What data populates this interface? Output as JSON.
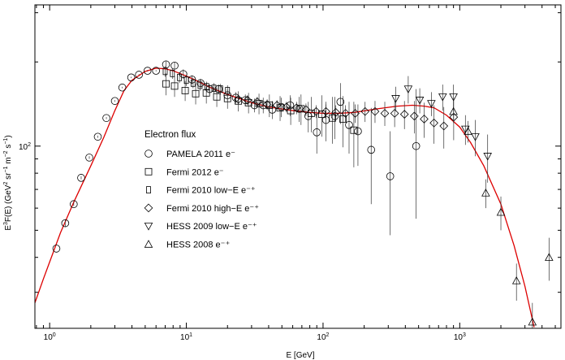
{
  "chart_data": {
    "type": "scatter",
    "title": "",
    "xlabel": "E [GeV]",
    "ylabel": "E^3F(E) (GeV^2 sr^-1 m^-2 s^-1)",
    "xscale": "log",
    "yscale": "log",
    "xlim": [
      0.78,
      5500
    ],
    "ylim": [
      22.3,
      320
    ],
    "x_tick_labels": [
      {
        "value": 1,
        "base": "10",
        "exp": "0"
      },
      {
        "value": 10,
        "base": "10",
        "exp": "1"
      },
      {
        "value": 100,
        "base": "10",
        "exp": "2"
      },
      {
        "value": 1000,
        "base": "10",
        "exp": "3"
      }
    ],
    "y_tick_labels": [
      {
        "value": 100,
        "base": "10",
        "exp": "2"
      }
    ],
    "grid": false,
    "legend": {
      "title": "Electron flux",
      "position": "center-left"
    },
    "curve_color": "#dd0000",
    "series": [
      {
        "name": "PAMELA 2011 e⁻",
        "marker": "circle",
        "points": [
          [
            1.12,
            43,
            0,
            0
          ],
          [
            1.3,
            53,
            1.5,
            1.5
          ],
          [
            1.5,
            62,
            1,
            1
          ],
          [
            1.7,
            77,
            1,
            1
          ],
          [
            1.95,
            91,
            1,
            1
          ],
          [
            2.25,
            108,
            1,
            1
          ],
          [
            2.6,
            126,
            1,
            1
          ],
          [
            3.0,
            145,
            1,
            1
          ],
          [
            3.4,
            162,
            1,
            1
          ],
          [
            3.95,
            176,
            1,
            1
          ],
          [
            4.5,
            180,
            1,
            1
          ],
          [
            5.2,
            186,
            1,
            1
          ],
          [
            6.0,
            186,
            1,
            1
          ],
          [
            7.1,
            196,
            6,
            6
          ],
          [
            8.2,
            194,
            6,
            6
          ],
          [
            9.5,
            181,
            7,
            7
          ],
          [
            11.0,
            173,
            6,
            6
          ],
          [
            12.7,
            168,
            6,
            6
          ],
          [
            14.8,
            160,
            6,
            6
          ],
          [
            17.2,
            160,
            6,
            6
          ],
          [
            20,
            152,
            7,
            7
          ],
          [
            23,
            149,
            7,
            7
          ],
          [
            27,
            146,
            7,
            7
          ],
          [
            31.5,
            140,
            8,
            8
          ],
          [
            36.5,
            140,
            9,
            9
          ],
          [
            42.5,
            135,
            10,
            10
          ],
          [
            49.5,
            138,
            11,
            11
          ],
          [
            57.5,
            140,
            12,
            12
          ],
          [
            67,
            136,
            14,
            14
          ],
          [
            78,
            128,
            16,
            16
          ],
          [
            90,
            112,
            18,
            18
          ],
          [
            105,
            124,
            20,
            20
          ],
          [
            122,
            128,
            22,
            22
          ],
          [
            134,
            144,
            24,
            24
          ],
          [
            155,
            119,
            25,
            25
          ],
          [
            180,
            113,
            28,
            28
          ],
          [
            225,
            97,
            35,
            40
          ],
          [
            310,
            78,
            30,
            35
          ],
          [
            480,
            100,
            45,
            60
          ]
        ]
      },
      {
        "name": "Fermi 2012 e⁻",
        "marker": "square",
        "points": [
          [
            7.1,
            167,
            15,
            15
          ],
          [
            8.2,
            164,
            14,
            14
          ],
          [
            9.8,
            158,
            13,
            13
          ],
          [
            11.7,
            154,
            13,
            13
          ],
          [
            14.0,
            155,
            13,
            13
          ],
          [
            16.7,
            150,
            12,
            12
          ],
          [
            20,
            148,
            12,
            12
          ],
          [
            24,
            145,
            12,
            12
          ],
          [
            28.5,
            143,
            12,
            12
          ],
          [
            34,
            142,
            12,
            12
          ],
          [
            40.5,
            140,
            13,
            13
          ],
          [
            48.5,
            137,
            14,
            14
          ],
          [
            58,
            134,
            15,
            15
          ],
          [
            69,
            136,
            17,
            17
          ],
          [
            82,
            131,
            19,
            19
          ],
          [
            98,
            130,
            22,
            22
          ],
          [
            117,
            126,
            24,
            24
          ],
          [
            140,
            125,
            26,
            26
          ],
          [
            168,
            114,
            30,
            30
          ]
        ]
      },
      {
        "name": "Fermi 2010 low−E e⁻⁺",
        "marker": "rect",
        "points": [
          [
            7.0,
            185,
            8,
            8
          ],
          [
            7.9,
            182,
            8,
            8
          ],
          [
            8.9,
            176,
            8,
            8
          ],
          [
            10.0,
            172,
            8,
            8
          ],
          [
            11.2,
            168,
            7,
            7
          ],
          [
            12.6,
            165,
            7,
            7
          ],
          [
            14.1,
            163,
            7,
            7
          ],
          [
            15.9,
            161,
            7,
            7
          ],
          [
            17.8,
            160,
            7,
            7
          ],
          [
            20,
            158,
            7,
            7
          ]
        ]
      },
      {
        "name": "Fermi 2010 high−E e⁻⁺",
        "marker": "diamond",
        "points": [
          [
            24,
            147,
            6,
            6
          ],
          [
            28,
            146,
            6,
            6
          ],
          [
            33,
            144,
            6,
            6
          ],
          [
            39,
            141,
            6,
            6
          ],
          [
            46,
            140,
            6,
            6
          ],
          [
            54,
            138,
            6,
            6
          ],
          [
            64,
            137,
            7,
            7
          ],
          [
            75,
            135,
            7,
            7
          ],
          [
            89,
            133,
            7,
            7
          ],
          [
            105,
            133,
            8,
            8
          ],
          [
            124,
            132,
            8,
            8
          ],
          [
            146,
            131,
            9,
            9
          ],
          [
            172,
            131,
            10,
            10
          ],
          [
            203,
            133,
            11,
            11
          ],
          [
            240,
            133,
            12,
            12
          ],
          [
            283,
            131,
            13,
            13
          ],
          [
            334,
            131,
            14,
            14
          ],
          [
            394,
            130,
            15,
            15
          ],
          [
            465,
            128,
            17,
            17
          ],
          [
            549,
            125,
            18,
            18
          ],
          [
            648,
            121,
            19,
            19
          ],
          [
            765,
            118,
            20,
            20
          ],
          [
            903,
            127,
            22,
            22
          ]
        ]
      },
      {
        "name": "HESS 2009 low−E e⁻⁺",
        "marker": "triangle-down",
        "points": [
          [
            340,
            148,
            15,
            15
          ],
          [
            420,
            160,
            18,
            18
          ],
          [
            510,
            146,
            15,
            15
          ],
          [
            620,
            142,
            14,
            14
          ],
          [
            750,
            150,
            16,
            16
          ],
          [
            900,
            150,
            16,
            16
          ],
          [
            1100,
            115,
            14,
            14
          ],
          [
            1300,
            108,
            16,
            16
          ],
          [
            1600,
            92,
            18,
            18
          ]
        ]
      },
      {
        "name": "HESS 2008 e⁻⁺",
        "marker": "triangle-up",
        "points": [
          [
            900,
            133,
            12,
            12
          ],
          [
            1150,
            113,
            10,
            10
          ],
          [
            1550,
            68,
            8,
            8
          ],
          [
            2000,
            58,
            8,
            8
          ],
          [
            2600,
            33,
            5,
            5
          ],
          [
            3400,
            23.5,
            4,
            4
          ],
          [
            4500,
            40,
            7,
            7
          ]
        ]
      }
    ]
  }
}
